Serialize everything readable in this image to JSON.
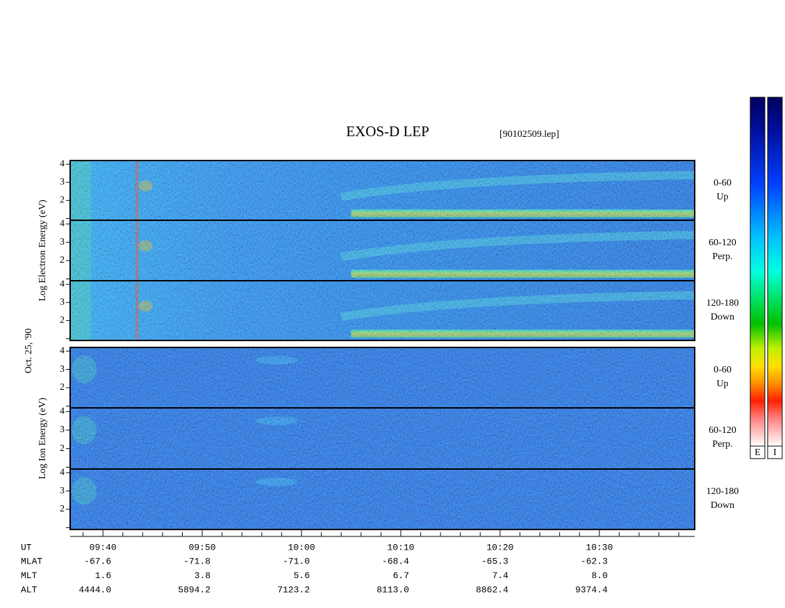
{
  "chart_data": {
    "type": "spectrogram",
    "title": "EXOS-D LEP",
    "subtitle": "[90102509.lep]",
    "date_label": "Oct. 25, '90",
    "groups": [
      {
        "species": "electron",
        "label": "Log Electron Energy (eV)"
      },
      {
        "species": "ion",
        "label": "Log Ion Energy (eV)"
      }
    ],
    "panels": [
      {
        "group": 0,
        "pitch": "0-60",
        "direction": "Up"
      },
      {
        "group": 0,
        "pitch": "60-120",
        "direction": "Perp."
      },
      {
        "group": 0,
        "pitch": "120-180",
        "direction": "Down"
      },
      {
        "group": 1,
        "pitch": "0-60",
        "direction": "Up"
      },
      {
        "group": 1,
        "pitch": "60-120",
        "direction": "Perp."
      },
      {
        "group": 1,
        "pitch": "120-180",
        "direction": "Down"
      }
    ],
    "ylim": [
      0.9,
      4.2
    ],
    "yticks": [
      1,
      2,
      3,
      4
    ],
    "ytick_labels": [
      "2",
      "3",
      "4"
    ],
    "xlim": [
      576.7,
      639.6
    ],
    "xticks": [
      {
        "value": 580,
        "label": "09:40"
      },
      {
        "value": 590,
        "label": "09:50"
      },
      {
        "value": 600,
        "label": "10:00"
      },
      {
        "value": 610,
        "label": "10:10"
      },
      {
        "value": 620,
        "label": "10:20"
      },
      {
        "value": 630,
        "label": "10:30"
      }
    ],
    "xminorticks": [
      578,
      582,
      584,
      586,
      588,
      592,
      594,
      596,
      598,
      602,
      604,
      606,
      608,
      612,
      614,
      616,
      618,
      622,
      624,
      626,
      628,
      632,
      634,
      636,
      638
    ],
    "x_row_label": "UT",
    "ephemeris": [
      {
        "label": "MLAT",
        "values": [
          "-67.6",
          "-71.8",
          "-71.0",
          "-68.4",
          "-65.3",
          "-62.3"
        ]
      },
      {
        "label": "MLT",
        "values": [
          "1.6",
          "3.8",
          "5.6",
          "6.7",
          "7.4",
          "8.0"
        ]
      },
      {
        "label": "ALT",
        "values": [
          "4444.0",
          "5894.2",
          "7123.2",
          "8113.0",
          "8862.4",
          "9374.4"
        ]
      }
    ],
    "colorbar": {
      "labels": [
        "E",
        "I"
      ]
    }
  }
}
